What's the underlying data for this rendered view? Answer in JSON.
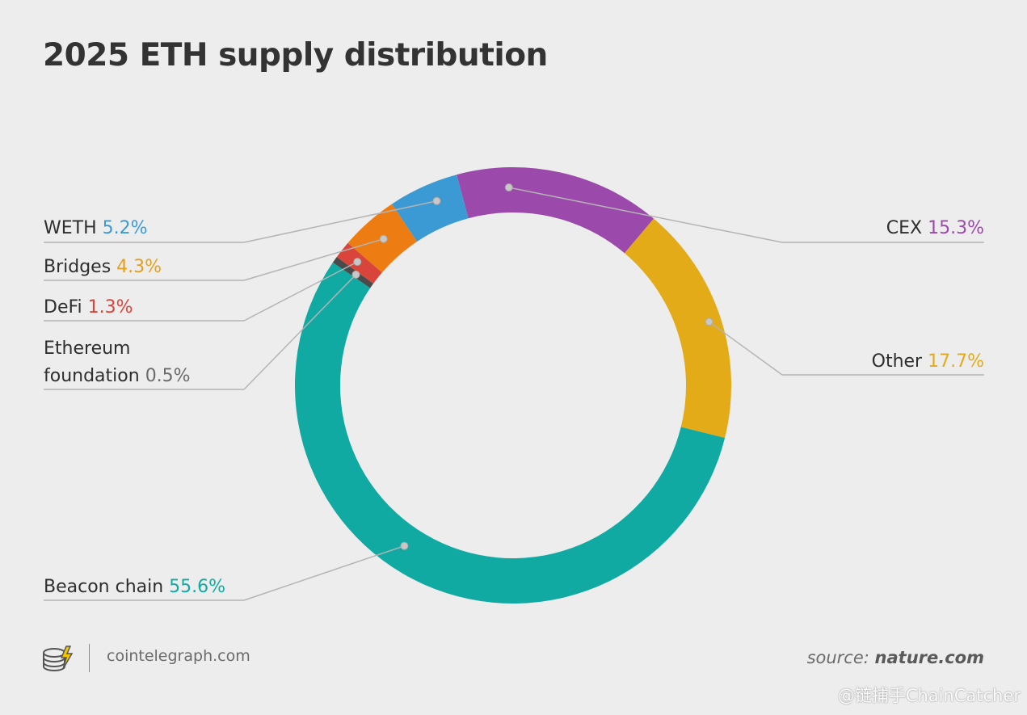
{
  "chart_data": {
    "type": "pie",
    "style": "donut",
    "title": "2025 ETH supply distribution",
    "slices": [
      {
        "label": "CEX",
        "value": 15.3,
        "value_text": "15.3%",
        "color": "#9b4aab",
        "label_side": "right"
      },
      {
        "label": "Other",
        "value": 17.7,
        "value_text": "17.7%",
        "color": "#e3ab18",
        "label_side": "right"
      },
      {
        "label": "Beacon chain",
        "value": 55.6,
        "value_text": "55.6%",
        "color": "#10aaa3",
        "label_side": "left"
      },
      {
        "label": "Ethereum foundation",
        "label_lines": [
          "Ethereum",
          "foundation"
        ],
        "value": 0.5,
        "value_text": "0.5%",
        "color": "#4a4a4a",
        "label_side": "left"
      },
      {
        "label": "DeFi",
        "value": 1.3,
        "value_text": "1.3%",
        "color": "#d9453a",
        "label_side": "left"
      },
      {
        "label": "Bridges",
        "value": 4.3,
        "value_text": "4.3%",
        "color": "#ed7d13",
        "label_side": "left"
      },
      {
        "label": "WETH",
        "value": 5.2,
        "value_text": "5.2%",
        "color": "#3b9ad4",
        "label_side": "left"
      }
    ],
    "value_label_colors": {
      "CEX": "#9b4aab",
      "Other": "#e3ab18",
      "Beacon chain": "#10aaa3",
      "Ethereum foundation": "#6b6b6b",
      "DeFi": "#d9453a",
      "Bridges": "#e3a020",
      "WETH": "#3b9ad4"
    }
  },
  "footer": {
    "site": "cointelegraph.com",
    "source_prefix": "source:",
    "source_name": "nature.com",
    "logo_icon": "cointelegraph-logo-icon"
  },
  "watermark": "@链捕手ChainCatcher"
}
